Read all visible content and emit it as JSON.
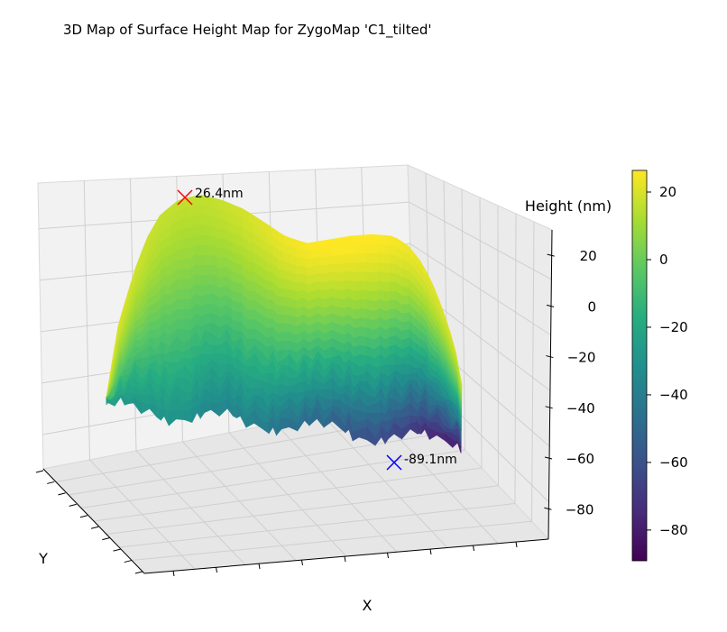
{
  "chart_data": {
    "type": "surface",
    "title": "3D Map of Surface Height Map for ZygoMap 'C1_tilted'",
    "xlabel": "X",
    "ylabel": "Y",
    "zlabel": "Height (nm)",
    "zlim": [
      -92,
      30
    ],
    "z_ticks": [
      20,
      0,
      -20,
      -40,
      -60,
      -80
    ],
    "z_tick_labels": [
      "20",
      "0",
      "−20",
      "−40",
      "−60",
      "−80"
    ],
    "colorbar": {
      "min": -89.1,
      "max": 26.4,
      "ticks": [
        20,
        0,
        -20,
        -40,
        -60,
        -80
      ],
      "tick_labels": [
        "20",
        "0",
        "−20",
        "−40",
        "−60",
        "−80"
      ],
      "colormap": [
        "#440154",
        "#472c7a",
        "#3b518b",
        "#2c718e",
        "#21908d",
        "#27ad81",
        "#5cc863",
        "#aadc32",
        "#fde725"
      ]
    },
    "annotations": [
      {
        "label": "26.4nm",
        "value": 26.4,
        "kind": "max",
        "marker": "x",
        "color": "#ff0000"
      },
      {
        "label": "-89.1nm",
        "value": -89.1,
        "kind": "min",
        "marker": "x",
        "color": "#0000ff"
      }
    ],
    "grid": true
  }
}
